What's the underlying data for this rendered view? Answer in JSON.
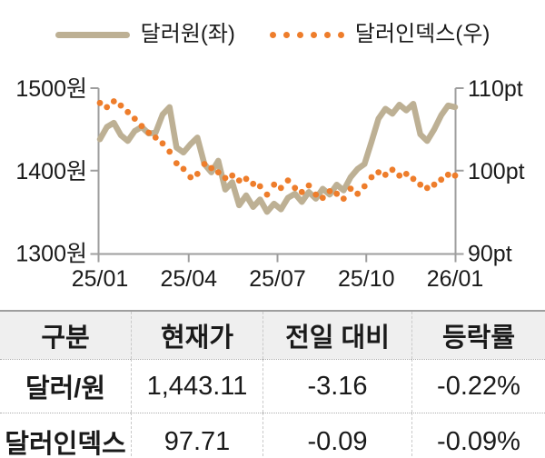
{
  "legend": [
    {
      "label": "달러원(좌)",
      "style": "solid",
      "color": "#bdb094"
    },
    {
      "label": "달러인덱스(우)",
      "style": "dotted",
      "color": "#ee7d2b"
    }
  ],
  "chart_data": {
    "type": "line",
    "x_tick_labels": [
      "25/01",
      "25/04",
      "25/07",
      "25/10",
      "26/01"
    ],
    "left_axis": {
      "tick_labels": [
        "1500원",
        "1400원",
        "1300원"
      ],
      "tick_values": [
        1500,
        1400,
        1300
      ],
      "range": [
        1300,
        1500
      ]
    },
    "right_axis": {
      "tick_labels": [
        "110pt",
        "100pt",
        "90pt"
      ],
      "tick_values": [
        110,
        100,
        90
      ],
      "range": [
        90,
        110
      ]
    },
    "grid": false,
    "legend_position": "top",
    "series": [
      {
        "name": "달러원(좌)",
        "axis": "left",
        "draw": "line",
        "color": "#bdb094",
        "values": [
          1438,
          1453,
          1458,
          1443,
          1436,
          1448,
          1453,
          1445,
          1446,
          1468,
          1477,
          1428,
          1422,
          1432,
          1440,
          1408,
          1398,
          1412,
          1377,
          1386,
          1358,
          1370,
          1356,
          1365,
          1350,
          1360,
          1353,
          1367,
          1372,
          1362,
          1374,
          1366,
          1378,
          1371,
          1383,
          1376,
          1392,
          1402,
          1408,
          1435,
          1463,
          1475,
          1469,
          1480,
          1473,
          1481,
          1444,
          1436,
          1450,
          1467,
          1479,
          1477
        ]
      },
      {
        "name": "달러인덱스(우)",
        "axis": "right",
        "draw": "dots",
        "color": "#ee7d2b",
        "values": [
          108.2,
          107.7,
          108.4,
          107.9,
          107.1,
          106.3,
          105.4,
          104.6,
          104.0,
          103.3,
          102.3,
          100.9,
          100.2,
          99.2,
          99.6,
          100.8,
          100.3,
          99.8,
          99.1,
          99.4,
          98.8,
          99.0,
          98.4,
          98.1,
          97.1,
          98.3,
          97.9,
          98.8,
          97.9,
          97.4,
          98.2,
          97.1,
          96.7,
          97.5,
          97.2,
          96.6,
          97.8,
          97.2,
          98.1,
          99.2,
          99.8,
          99.5,
          100.1,
          99.4,
          99.6,
          99.0,
          98.3,
          97.9,
          98.3,
          98.9,
          99.5,
          99.4
        ]
      }
    ]
  },
  "table": {
    "headers": [
      "구분",
      "현재가",
      "전일 대비",
      "등락률"
    ],
    "rows": [
      {
        "label": "달러/원",
        "cells": [
          "1,443.11",
          "-3.16",
          "-0.22%"
        ]
      },
      {
        "label": "달러인덱스",
        "cells": [
          "97.71",
          "-0.09",
          "-0.09%"
        ]
      }
    ]
  },
  "colors": {
    "axis": "#9e9e9e",
    "text": "#1a1a1a",
    "header_bg": "#efefef",
    "won_line": "#bdb094",
    "index_dots": "#ee7d2b"
  }
}
